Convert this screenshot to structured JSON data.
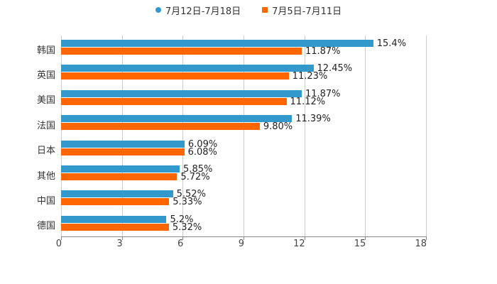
{
  "legend": [
    {
      "label": "7月12日-7月18日",
      "color": "#3399cc",
      "shape": "circle"
    },
    {
      "label": "7月5日-7月11日",
      "color": "#ff6600",
      "shape": "square"
    }
  ],
  "chart_data": {
    "type": "bar",
    "orientation": "horizontal",
    "title": "",
    "xlabel": "",
    "ylabel": "",
    "categories": [
      "韩国",
      "英国",
      "美国",
      "法国",
      "日本",
      "其他",
      "中国",
      "德国"
    ],
    "series": [
      {
        "name": "7月12日-7月18日",
        "color": "#3399cc",
        "values": [
          15.4,
          12.45,
          11.87,
          11.39,
          6.09,
          5.85,
          5.52,
          5.2
        ],
        "labels": [
          "15.4%",
          "12.45%",
          "11.87%",
          "11.39%",
          "6.09%",
          "5.85%",
          "5.52%",
          "5.2%"
        ]
      },
      {
        "name": "7月5日-7月11日",
        "color": "#ff6600",
        "values": [
          11.87,
          11.23,
          11.12,
          9.8,
          6.08,
          5.72,
          5.33,
          5.32
        ],
        "labels": [
          "11.87%",
          "11.23%",
          "11.12%",
          "9.80%",
          "6.08%",
          "5.72%",
          "5.33%",
          "5.32%"
        ]
      }
    ],
    "xlim": [
      0,
      18
    ],
    "xticks": [
      "0",
      "3",
      "6",
      "9",
      "12",
      "15",
      "18"
    ],
    "grid": true,
    "legend_position": "top"
  }
}
